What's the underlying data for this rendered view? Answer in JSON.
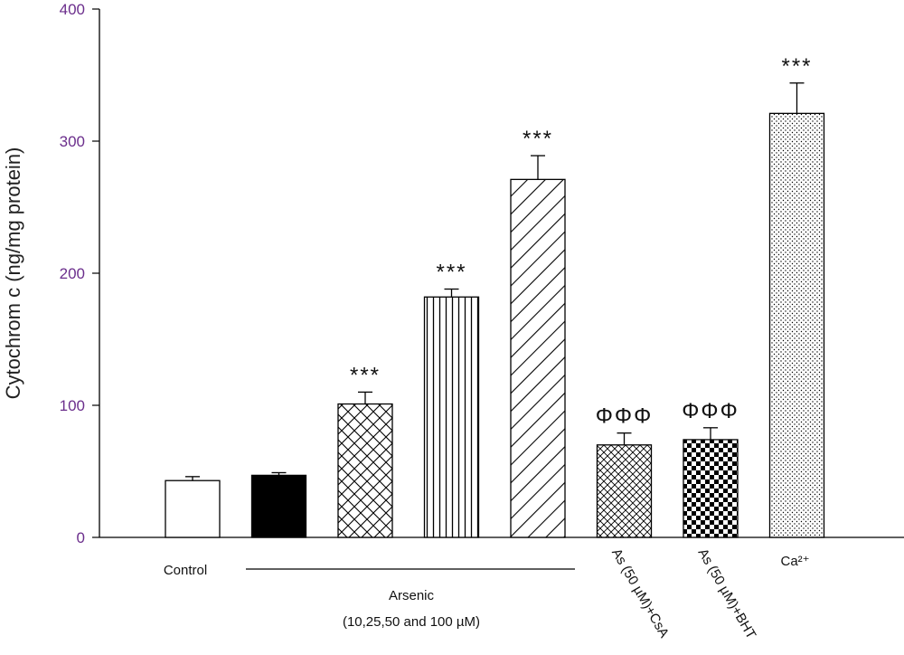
{
  "chart_data": {
    "type": "bar",
    "ylabel": "Cytochrom c (ng/mg protein)",
    "xlabel": "",
    "ylim": [
      0,
      400
    ],
    "yticks": [
      0,
      100,
      200,
      300,
      400
    ],
    "grid": false,
    "bars": [
      {
        "value": 43,
        "error": 3,
        "pattern": "white",
        "label": "Control",
        "sig": ""
      },
      {
        "value": 47,
        "error": 2,
        "pattern": "black",
        "label": "",
        "sig": ""
      },
      {
        "value": 101,
        "error": 9,
        "pattern": "crosshatch",
        "label": "",
        "sig": "***"
      },
      {
        "value": 182,
        "error": 6,
        "pattern": "vertical",
        "label": "",
        "sig": "***"
      },
      {
        "value": 271,
        "error": 18,
        "pattern": "diagonal",
        "label": "",
        "sig": "***"
      },
      {
        "value": 70,
        "error": 9,
        "pattern": "fine-crosshatch",
        "label": "As (50 µM)+CsA",
        "sig": "ΦΦΦ"
      },
      {
        "value": 74,
        "error": 9,
        "pattern": "checker",
        "label": "As (50 µM)+BHT",
        "sig": "ΦΦΦ"
      },
      {
        "value": 321,
        "error": 23,
        "pattern": "dots",
        "label": "Ca²⁺",
        "sig": "***"
      }
    ],
    "group_label": {
      "line1": "Arsenic",
      "line2": "(10,25,50 and 100 µM)"
    }
  }
}
